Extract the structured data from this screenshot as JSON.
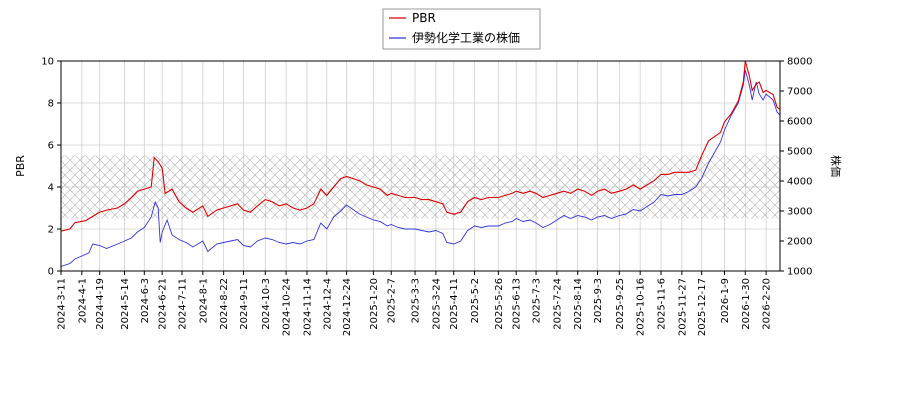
{
  "chart_data": {
    "type": "line",
    "title": "",
    "xlabel": "",
    "ylabel_left": "PBR",
    "ylabel_right": "株価",
    "ylim_left": [
      0,
      10
    ],
    "ylim_right": [
      1000,
      8000
    ],
    "yticks_left": [
      "0",
      "2",
      "4",
      "6",
      "8",
      "10"
    ],
    "yticks_right": [
      "1000",
      "2000",
      "3000",
      "4000",
      "5000",
      "6000",
      "7000",
      "8000"
    ],
    "xlim": [
      "2024-03-11",
      "2026-03-06"
    ],
    "x_tick_labels": [
      "2024-3-11",
      "2024-4-1",
      "2024-4-19",
      "2024-5-14",
      "2024-6-3",
      "2024-6-21",
      "2024-7-11",
      "2024-8-1",
      "2024-8-22",
      "2024-9-11",
      "2024-10-3",
      "2024-10-24",
      "2024-11-14",
      "2024-12-4",
      "2024-12-24",
      "2025-1-20",
      "2025-2-7",
      "2025-3-3",
      "2025-3-24",
      "2025-4-11",
      "2025-5-2",
      "2025-5-26",
      "2025-6-13",
      "2025-7-3",
      "2025-7-24",
      "2025-8-14",
      "2025-9-3",
      "2025-9-25",
      "2025-10-16",
      "2025-11-6",
      "2025-11-27",
      "2025-12-17",
      "2026-1-9",
      "2026-1-30",
      "2026-2-20"
    ],
    "x_tick_dates": [
      "2024-03-11",
      "2024-04-01",
      "2024-04-19",
      "2024-05-14",
      "2024-06-03",
      "2024-06-21",
      "2024-07-11",
      "2024-08-01",
      "2024-08-22",
      "2024-09-11",
      "2024-10-03",
      "2024-10-24",
      "2024-11-14",
      "2024-12-04",
      "2024-12-24",
      "2025-01-20",
      "2025-02-07",
      "2025-03-03",
      "2025-03-24",
      "2025-04-11",
      "2025-05-02",
      "2025-05-26",
      "2025-06-13",
      "2025-07-03",
      "2025-07-24",
      "2025-08-14",
      "2025-09-03",
      "2025-09-25",
      "2025-10-16",
      "2025-11-06",
      "2025-11-27",
      "2025-12-17",
      "2026-01-09",
      "2026-01-30",
      "2026-02-20"
    ],
    "hatched_band_left_axis": [
      2.5,
      5.5
    ],
    "legend": {
      "placement": "top-center"
    },
    "grid": true,
    "series": [
      {
        "name": "PBR",
        "axis": "left",
        "color": "#dd0000",
        "points": [
          [
            "2024-03-11",
            1.9
          ],
          [
            "2024-03-20",
            2.0
          ],
          [
            "2024-03-25",
            2.3
          ],
          [
            "2024-04-05",
            2.4
          ],
          [
            "2024-04-12",
            2.6
          ],
          [
            "2024-04-19",
            2.8
          ],
          [
            "2024-04-26",
            2.9
          ],
          [
            "2024-05-07",
            3.0
          ],
          [
            "2024-05-14",
            3.2
          ],
          [
            "2024-05-21",
            3.5
          ],
          [
            "2024-05-27",
            3.8
          ],
          [
            "2024-06-03",
            3.9
          ],
          [
            "2024-06-10",
            4.0
          ],
          [
            "2024-06-13",
            5.4
          ],
          [
            "2024-06-17",
            5.2
          ],
          [
            "2024-06-21",
            4.9
          ],
          [
            "2024-06-24",
            3.7
          ],
          [
            "2024-07-01",
            3.9
          ],
          [
            "2024-07-08",
            3.3
          ],
          [
            "2024-07-15",
            3.0
          ],
          [
            "2024-07-22",
            2.8
          ],
          [
            "2024-08-01",
            3.1
          ],
          [
            "2024-08-06",
            2.6
          ],
          [
            "2024-08-15",
            2.9
          ],
          [
            "2024-08-22",
            3.0
          ],
          [
            "2024-08-29",
            3.1
          ],
          [
            "2024-09-05",
            3.2
          ],
          [
            "2024-09-11",
            2.9
          ],
          [
            "2024-09-18",
            2.8
          ],
          [
            "2024-09-25",
            3.1
          ],
          [
            "2024-10-03",
            3.4
          ],
          [
            "2024-10-10",
            3.3
          ],
          [
            "2024-10-17",
            3.1
          ],
          [
            "2024-10-24",
            3.2
          ],
          [
            "2024-10-31",
            3.0
          ],
          [
            "2024-11-07",
            2.9
          ],
          [
            "2024-11-14",
            3.0
          ],
          [
            "2024-11-21",
            3.2
          ],
          [
            "2024-11-28",
            3.9
          ],
          [
            "2024-12-04",
            3.6
          ],
          [
            "2024-12-11",
            4.0
          ],
          [
            "2024-12-18",
            4.4
          ],
          [
            "2024-12-24",
            4.5
          ],
          [
            "2025-01-06",
            4.3
          ],
          [
            "2025-01-13",
            4.1
          ],
          [
            "2025-01-20",
            4.0
          ],
          [
            "2025-01-27",
            3.9
          ],
          [
            "2025-02-03",
            3.6
          ],
          [
            "2025-02-07",
            3.7
          ],
          [
            "2025-02-14",
            3.6
          ],
          [
            "2025-02-21",
            3.5
          ],
          [
            "2025-03-03",
            3.5
          ],
          [
            "2025-03-10",
            3.4
          ],
          [
            "2025-03-17",
            3.4
          ],
          [
            "2025-03-24",
            3.3
          ],
          [
            "2025-03-31",
            3.2
          ],
          [
            "2025-04-04",
            2.8
          ],
          [
            "2025-04-11",
            2.7
          ],
          [
            "2025-04-18",
            2.8
          ],
          [
            "2025-04-25",
            3.3
          ],
          [
            "2025-05-02",
            3.5
          ],
          [
            "2025-05-09",
            3.4
          ],
          [
            "2025-05-16",
            3.5
          ],
          [
            "2025-05-26",
            3.5
          ],
          [
            "2025-06-02",
            3.6
          ],
          [
            "2025-06-09",
            3.7
          ],
          [
            "2025-06-13",
            3.8
          ],
          [
            "2025-06-20",
            3.7
          ],
          [
            "2025-06-27",
            3.8
          ],
          [
            "2025-07-03",
            3.7
          ],
          [
            "2025-07-10",
            3.5
          ],
          [
            "2025-07-17",
            3.6
          ],
          [
            "2025-07-24",
            3.7
          ],
          [
            "2025-07-31",
            3.8
          ],
          [
            "2025-08-07",
            3.7
          ],
          [
            "2025-08-14",
            3.9
          ],
          [
            "2025-08-21",
            3.8
          ],
          [
            "2025-08-28",
            3.6
          ],
          [
            "2025-09-03",
            3.8
          ],
          [
            "2025-09-10",
            3.9
          ],
          [
            "2025-09-17",
            3.7
          ],
          [
            "2025-09-25",
            3.8
          ],
          [
            "2025-10-02",
            3.9
          ],
          [
            "2025-10-09",
            4.1
          ],
          [
            "2025-10-16",
            3.9
          ],
          [
            "2025-10-23",
            4.1
          ],
          [
            "2025-10-30",
            4.3
          ],
          [
            "2025-11-06",
            4.6
          ],
          [
            "2025-11-13",
            4.6
          ],
          [
            "2025-11-20",
            4.7
          ],
          [
            "2025-11-27",
            4.7
          ],
          [
            "2025-12-04",
            4.7
          ],
          [
            "2025-12-11",
            4.8
          ],
          [
            "2025-12-17",
            5.5
          ],
          [
            "2025-12-24",
            6.2
          ],
          [
            "2026-01-05",
            6.6
          ],
          [
            "2026-01-09",
            7.1
          ],
          [
            "2026-01-16",
            7.5
          ],
          [
            "2026-01-23",
            8.1
          ],
          [
            "2026-01-28",
            9.0
          ],
          [
            "2026-01-30",
            10.0
          ],
          [
            "2026-02-03",
            9.3
          ],
          [
            "2026-02-06",
            8.6
          ],
          [
            "2026-02-10",
            8.9
          ],
          [
            "2026-02-13",
            9.0
          ],
          [
            "2026-02-17",
            8.5
          ],
          [
            "2026-02-20",
            8.6
          ],
          [
            "2026-02-27",
            8.4
          ],
          [
            "2026-03-03",
            7.8
          ],
          [
            "2026-03-06",
            7.7
          ]
        ]
      },
      {
        "name": "伊勢化学工業の株価",
        "axis": "right",
        "color": "#3333dd",
        "points": [
          [
            "2024-03-11",
            1150
          ],
          [
            "2024-03-20",
            1250
          ],
          [
            "2024-03-25",
            1400
          ],
          [
            "2024-04-01",
            1500
          ],
          [
            "2024-04-08",
            1600
          ],
          [
            "2024-04-12",
            1900
          ],
          [
            "2024-04-19",
            1850
          ],
          [
            "2024-04-26",
            1750
          ],
          [
            "2024-05-07",
            1900
          ],
          [
            "2024-05-14",
            2000
          ],
          [
            "2024-05-21",
            2100
          ],
          [
            "2024-05-27",
            2300
          ],
          [
            "2024-06-03",
            2450
          ],
          [
            "2024-06-10",
            2800
          ],
          [
            "2024-06-14",
            3300
          ],
          [
            "2024-06-17",
            3100
          ],
          [
            "2024-06-19",
            1950
          ],
          [
            "2024-06-21",
            2300
          ],
          [
            "2024-06-26",
            2700
          ],
          [
            "2024-07-01",
            2200
          ],
          [
            "2024-07-08",
            2050
          ],
          [
            "2024-07-15",
            1950
          ],
          [
            "2024-07-22",
            1800
          ],
          [
            "2024-08-01",
            2000
          ],
          [
            "2024-08-06",
            1650
          ],
          [
            "2024-08-15",
            1900
          ],
          [
            "2024-08-22",
            1950
          ],
          [
            "2024-08-29",
            2000
          ],
          [
            "2024-09-05",
            2050
          ],
          [
            "2024-09-11",
            1850
          ],
          [
            "2024-09-18",
            1800
          ],
          [
            "2024-09-25",
            2000
          ],
          [
            "2024-10-03",
            2100
          ],
          [
            "2024-10-10",
            2050
          ],
          [
            "2024-10-17",
            1950
          ],
          [
            "2024-10-24",
            1900
          ],
          [
            "2024-10-31",
            1950
          ],
          [
            "2024-11-07",
            1900
          ],
          [
            "2024-11-14",
            2000
          ],
          [
            "2024-11-21",
            2050
          ],
          [
            "2024-11-28",
            2600
          ],
          [
            "2024-12-04",
            2400
          ],
          [
            "2024-12-11",
            2800
          ],
          [
            "2024-12-18",
            3000
          ],
          [
            "2024-12-24",
            3200
          ],
          [
            "2025-01-06",
            2900
          ],
          [
            "2025-01-13",
            2800
          ],
          [
            "2025-01-20",
            2700
          ],
          [
            "2025-01-27",
            2650
          ],
          [
            "2025-02-03",
            2500
          ],
          [
            "2025-02-07",
            2550
          ],
          [
            "2025-02-14",
            2450
          ],
          [
            "2025-02-21",
            2400
          ],
          [
            "2025-03-03",
            2400
          ],
          [
            "2025-03-10",
            2350
          ],
          [
            "2025-03-17",
            2300
          ],
          [
            "2025-03-24",
            2350
          ],
          [
            "2025-03-31",
            2250
          ],
          [
            "2025-04-04",
            1950
          ],
          [
            "2025-04-11",
            1900
          ],
          [
            "2025-04-18",
            2000
          ],
          [
            "2025-04-25",
            2350
          ],
          [
            "2025-05-02",
            2500
          ],
          [
            "2025-05-09",
            2450
          ],
          [
            "2025-05-16",
            2500
          ],
          [
            "2025-05-26",
            2500
          ],
          [
            "2025-06-02",
            2600
          ],
          [
            "2025-06-09",
            2650
          ],
          [
            "2025-06-13",
            2750
          ],
          [
            "2025-06-20",
            2650
          ],
          [
            "2025-06-27",
            2700
          ],
          [
            "2025-07-03",
            2600
          ],
          [
            "2025-07-10",
            2450
          ],
          [
            "2025-07-17",
            2550
          ],
          [
            "2025-07-24",
            2700
          ],
          [
            "2025-07-31",
            2850
          ],
          [
            "2025-08-07",
            2750
          ],
          [
            "2025-08-14",
            2850
          ],
          [
            "2025-08-21",
            2800
          ],
          [
            "2025-08-28",
            2700
          ],
          [
            "2025-09-03",
            2800
          ],
          [
            "2025-09-10",
            2850
          ],
          [
            "2025-09-17",
            2750
          ],
          [
            "2025-09-25",
            2850
          ],
          [
            "2025-10-02",
            2900
          ],
          [
            "2025-10-09",
            3050
          ],
          [
            "2025-10-16",
            3000
          ],
          [
            "2025-10-23",
            3150
          ],
          [
            "2025-10-30",
            3300
          ],
          [
            "2025-11-06",
            3550
          ],
          [
            "2025-11-13",
            3500
          ],
          [
            "2025-11-20",
            3550
          ],
          [
            "2025-11-27",
            3550
          ],
          [
            "2025-12-04",
            3650
          ],
          [
            "2025-12-11",
            3800
          ],
          [
            "2025-12-17",
            4100
          ],
          [
            "2025-12-24",
            4600
          ],
          [
            "2026-01-05",
            5300
          ],
          [
            "2026-01-09",
            5700
          ],
          [
            "2026-01-16",
            6200
          ],
          [
            "2026-01-23",
            6600
          ],
          [
            "2026-01-28",
            7200
          ],
          [
            "2026-01-30",
            7700
          ],
          [
            "2026-02-03",
            7200
          ],
          [
            "2026-02-06",
            6700
          ],
          [
            "2026-02-10",
            7300
          ],
          [
            "2026-02-13",
            6900
          ],
          [
            "2026-02-17",
            6700
          ],
          [
            "2026-02-20",
            6900
          ],
          [
            "2026-02-27",
            6700
          ],
          [
            "2026-03-03",
            6300
          ],
          [
            "2026-03-06",
            6200
          ]
        ]
      }
    ]
  }
}
